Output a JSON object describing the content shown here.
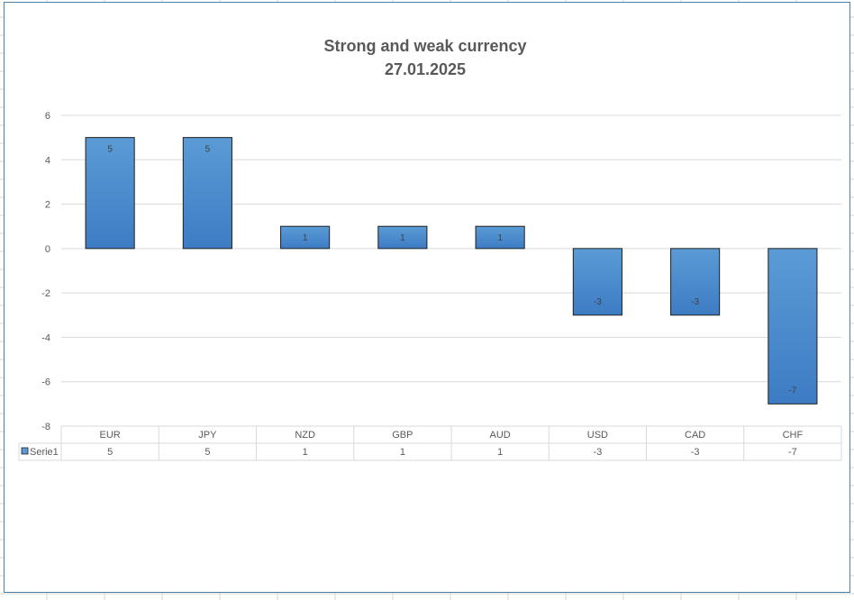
{
  "chart_data": {
    "type": "bar",
    "title": "Strong and weak currency",
    "subtitle": "27.01.2025",
    "categories": [
      "EUR",
      "JPY",
      "NZD",
      "GBP",
      "AUD",
      "USD",
      "CAD",
      "CHF"
    ],
    "series": [
      {
        "name": "Serie1",
        "values": [
          5,
          5,
          1,
          1,
          1,
          -3,
          -3,
          -7
        ]
      }
    ],
    "ylim": [
      -8,
      6
    ],
    "yticks": [
      6,
      4,
      2,
      0,
      -2,
      -4,
      -6,
      -8
    ],
    "grid": true,
    "data_labels": true,
    "data_table": true,
    "colors": {
      "bar_top": "#5b9bd5",
      "bar_bottom": "#3d7cc4",
      "bar_border": "#1f1f1f",
      "grid": "#d9d9d9",
      "frame": "#4a7fa8"
    }
  }
}
